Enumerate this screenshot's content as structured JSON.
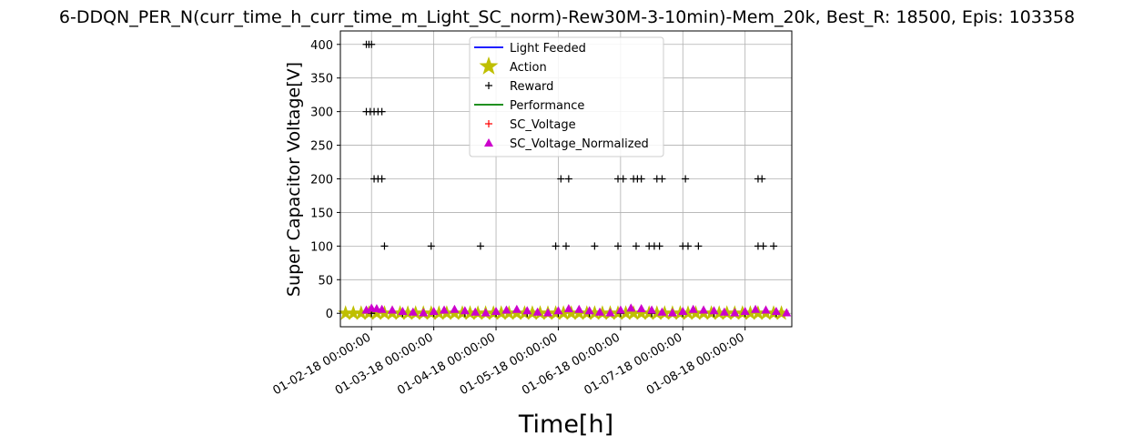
{
  "chart_data": {
    "type": "scatter",
    "title": "6-DDQN_PER_N(curr_time_h_curr_time_m_Light_SC_norm)-Rew30M-3-10min)-Mem_20k, Best_R: 18500, Epis: 103358",
    "xlabel": "Time[h]",
    "ylabel": "Super Capacitor Voltage[V]",
    "x_type": "date",
    "xlim": [
      "01-01-18 12:00:00",
      "01-08-18 18:00:00"
    ],
    "ylim": [
      -20,
      420
    ],
    "grid": true,
    "legend_position": "upper center",
    "x_ticks": [
      {
        "x": "01-02-18 00:00:00",
        "label": "01-02-18 00:00:00"
      },
      {
        "x": "01-03-18 00:00:00",
        "label": "01-03-18 00:00:00"
      },
      {
        "x": "01-04-18 00:00:00",
        "label": "01-04-18 00:00:00"
      },
      {
        "x": "01-05-18 00:00:00",
        "label": "01-05-18 00:00:00"
      },
      {
        "x": "01-06-18 00:00:00",
        "label": "01-06-18 00:00:00"
      },
      {
        "x": "01-07-18 00:00:00",
        "label": "01-07-18 00:00:00"
      },
      {
        "x": "01-08-18 00:00:00",
        "label": "01-08-18 00:00:00"
      }
    ],
    "y_ticks": [
      0,
      50,
      100,
      150,
      200,
      250,
      300,
      350,
      400
    ],
    "series": [
      {
        "name": "Light Feeded",
        "marker": "line",
        "color": "#0000ff",
        "points": []
      },
      {
        "name": "Action",
        "marker": "star",
        "color": "#bfbf00",
        "points": [
          [
            "01-01-18 14:00:00",
            0
          ],
          [
            "01-01-18 17:00:00",
            0
          ],
          [
            "01-01-18 20:00:00",
            0
          ],
          [
            "01-01-18 23:00:00",
            0
          ],
          [
            "01-02-18 02:00:00",
            0
          ],
          [
            "01-02-18 05:00:00",
            0
          ],
          [
            "01-02-18 08:00:00",
            0
          ],
          [
            "01-02-18 11:00:00",
            0
          ],
          [
            "01-02-18 14:00:00",
            0
          ],
          [
            "01-02-18 17:00:00",
            0
          ],
          [
            "01-02-18 20:00:00",
            0
          ],
          [
            "01-02-18 23:00:00",
            0
          ],
          [
            "01-03-18 02:00:00",
            0
          ],
          [
            "01-03-18 05:00:00",
            0
          ],
          [
            "01-03-18 08:00:00",
            0
          ],
          [
            "01-03-18 11:00:00",
            0
          ],
          [
            "01-03-18 14:00:00",
            0
          ],
          [
            "01-03-18 17:00:00",
            0
          ],
          [
            "01-03-18 20:00:00",
            0
          ],
          [
            "01-03-18 23:00:00",
            0
          ],
          [
            "01-04-18 02:00:00",
            0
          ],
          [
            "01-04-18 05:00:00",
            0
          ],
          [
            "01-04-18 08:00:00",
            0
          ],
          [
            "01-04-18 11:00:00",
            0
          ],
          [
            "01-04-18 14:00:00",
            0
          ],
          [
            "01-04-18 17:00:00",
            0
          ],
          [
            "01-04-18 20:00:00",
            0
          ],
          [
            "01-04-18 23:00:00",
            0
          ],
          [
            "01-05-18 02:00:00",
            0
          ],
          [
            "01-05-18 05:00:00",
            0
          ],
          [
            "01-05-18 08:00:00",
            0
          ],
          [
            "01-05-18 11:00:00",
            0
          ],
          [
            "01-05-18 14:00:00",
            0
          ],
          [
            "01-05-18 17:00:00",
            0
          ],
          [
            "01-05-18 20:00:00",
            0
          ],
          [
            "01-05-18 23:00:00",
            0
          ],
          [
            "01-06-18 02:00:00",
            0
          ],
          [
            "01-06-18 05:00:00",
            0
          ],
          [
            "01-06-18 08:00:00",
            0
          ],
          [
            "01-06-18 11:00:00",
            0
          ],
          [
            "01-06-18 14:00:00",
            0
          ],
          [
            "01-06-18 17:00:00",
            0
          ],
          [
            "01-06-18 20:00:00",
            0
          ],
          [
            "01-06-18 23:00:00",
            0
          ],
          [
            "01-07-18 02:00:00",
            0
          ],
          [
            "01-07-18 05:00:00",
            0
          ],
          [
            "01-07-18 08:00:00",
            0
          ],
          [
            "01-07-18 11:00:00",
            0
          ],
          [
            "01-07-18 14:00:00",
            0
          ],
          [
            "01-07-18 17:00:00",
            0
          ],
          [
            "01-07-18 20:00:00",
            0
          ],
          [
            "01-07-18 23:00:00",
            0
          ],
          [
            "01-08-18 02:00:00",
            0
          ],
          [
            "01-08-18 05:00:00",
            0
          ],
          [
            "01-08-18 08:00:00",
            0
          ],
          [
            "01-08-18 11:00:00",
            0
          ],
          [
            "01-08-18 14:00:00",
            0
          ]
        ]
      },
      {
        "name": "Reward",
        "marker": "plus",
        "color": "#000000",
        "points": [
          [
            "01-01-18 22:00:00",
            400
          ],
          [
            "01-01-18 23:00:00",
            400
          ],
          [
            "01-02-18 00:00:00",
            400
          ],
          [
            "01-01-18 22:00:00",
            300
          ],
          [
            "01-01-18 23:30:00",
            300
          ],
          [
            "01-02-18 01:00:00",
            300
          ],
          [
            "01-02-18 02:30:00",
            300
          ],
          [
            "01-02-18 04:00:00",
            300
          ],
          [
            "01-02-18 01:00:00",
            200
          ],
          [
            "01-02-18 02:30:00",
            200
          ],
          [
            "01-02-18 04:00:00",
            200
          ],
          [
            "01-02-18 05:00:00",
            100
          ],
          [
            "01-02-18 23:00:00",
            100
          ],
          [
            "01-03-18 18:00:00",
            100
          ],
          [
            "01-04-18 23:00:00",
            100
          ],
          [
            "01-05-18 03:00:00",
            100
          ],
          [
            "01-05-18 14:00:00",
            100
          ],
          [
            "01-05-18 23:00:00",
            100
          ],
          [
            "01-06-18 06:00:00",
            100
          ],
          [
            "01-06-18 11:00:00",
            100
          ],
          [
            "01-06-18 13:00:00",
            100
          ],
          [
            "01-06-18 15:00:00",
            100
          ],
          [
            "01-07-18 00:00:00",
            100
          ],
          [
            "01-07-18 02:00:00",
            100
          ],
          [
            "01-07-18 06:00:00",
            100
          ],
          [
            "01-08-18 05:00:00",
            100
          ],
          [
            "01-08-18 07:00:00",
            100
          ],
          [
            "01-08-18 11:00:00",
            100
          ],
          [
            "01-05-18 01:00:00",
            200
          ],
          [
            "01-05-18 04:00:00",
            200
          ],
          [
            "01-05-18 23:00:00",
            200
          ],
          [
            "01-06-18 01:00:00",
            200
          ],
          [
            "01-06-18 05:00:00",
            200
          ],
          [
            "01-06-18 06:30:00",
            200
          ],
          [
            "01-06-18 08:00:00",
            200
          ],
          [
            "01-06-18 14:00:00",
            200
          ],
          [
            "01-06-18 16:00:00",
            200
          ],
          [
            "01-07-18 01:00:00",
            200
          ],
          [
            "01-08-18 05:00:00",
            200
          ],
          [
            "01-08-18 06:30:00",
            200
          ],
          [
            "01-02-18 00:00:00",
            0
          ],
          [
            "01-02-18 12:00:00",
            0
          ],
          [
            "01-03-18 00:00:00",
            0
          ],
          [
            "01-03-18 12:00:00",
            0
          ],
          [
            "01-04-18 00:00:00",
            0
          ],
          [
            "01-04-18 12:00:00",
            0
          ],
          [
            "01-05-18 00:00:00",
            0
          ],
          [
            "01-05-18 12:00:00",
            0
          ],
          [
            "01-06-18 00:00:00",
            0
          ],
          [
            "01-06-18 12:00:00",
            0
          ],
          [
            "01-07-18 00:00:00",
            0
          ],
          [
            "01-07-18 12:00:00",
            0
          ],
          [
            "01-08-18 00:00:00",
            0
          ],
          [
            "01-08-18 12:00:00",
            0
          ]
        ]
      },
      {
        "name": "Performance",
        "marker": "line",
        "color": "#008000",
        "points": []
      },
      {
        "name": "SC_Voltage",
        "marker": "plus",
        "color": "#ff0000",
        "points": []
      },
      {
        "name": "SC_Voltage_Normalized",
        "marker": "triangle",
        "color": "#cc00cc",
        "points": [
          [
            "01-01-18 22:00:00",
            5
          ],
          [
            "01-02-18 00:00:00",
            8
          ],
          [
            "01-02-18 02:00:00",
            7
          ],
          [
            "01-02-18 04:00:00",
            6
          ],
          [
            "01-02-18 08:00:00",
            5
          ],
          [
            "01-02-18 12:00:00",
            3
          ],
          [
            "01-02-18 16:00:00",
            2
          ],
          [
            "01-02-18 20:00:00",
            1
          ],
          [
            "01-03-18 00:00:00",
            3
          ],
          [
            "01-03-18 04:00:00",
            5
          ],
          [
            "01-03-18 08:00:00",
            6
          ],
          [
            "01-03-18 12:00:00",
            4
          ],
          [
            "01-03-18 16:00:00",
            2
          ],
          [
            "01-03-18 20:00:00",
            1
          ],
          [
            "01-04-18 00:00:00",
            3
          ],
          [
            "01-04-18 04:00:00",
            5
          ],
          [
            "01-04-18 08:00:00",
            6
          ],
          [
            "01-04-18 12:00:00",
            4
          ],
          [
            "01-04-18 16:00:00",
            2
          ],
          [
            "01-04-18 20:00:00",
            1
          ],
          [
            "01-05-18 00:00:00",
            4
          ],
          [
            "01-05-18 04:00:00",
            7
          ],
          [
            "01-05-18 08:00:00",
            6
          ],
          [
            "01-05-18 12:00:00",
            4
          ],
          [
            "01-05-18 16:00:00",
            2
          ],
          [
            "01-05-18 20:00:00",
            1
          ],
          [
            "01-06-18 00:00:00",
            5
          ],
          [
            "01-06-18 04:00:00",
            8
          ],
          [
            "01-06-18 08:00:00",
            7
          ],
          [
            "01-06-18 12:00:00",
            5
          ],
          [
            "01-06-18 16:00:00",
            2
          ],
          [
            "01-06-18 20:00:00",
            1
          ],
          [
            "01-07-18 00:00:00",
            3
          ],
          [
            "01-07-18 04:00:00",
            6
          ],
          [
            "01-07-18 08:00:00",
            5
          ],
          [
            "01-07-18 12:00:00",
            4
          ],
          [
            "01-07-18 16:00:00",
            2
          ],
          [
            "01-07-18 20:00:00",
            1
          ],
          [
            "01-08-18 00:00:00",
            3
          ],
          [
            "01-08-18 04:00:00",
            6
          ],
          [
            "01-08-18 08:00:00",
            5
          ],
          [
            "01-08-18 12:00:00",
            3
          ],
          [
            "01-08-18 16:00:00",
            1
          ]
        ]
      }
    ]
  }
}
